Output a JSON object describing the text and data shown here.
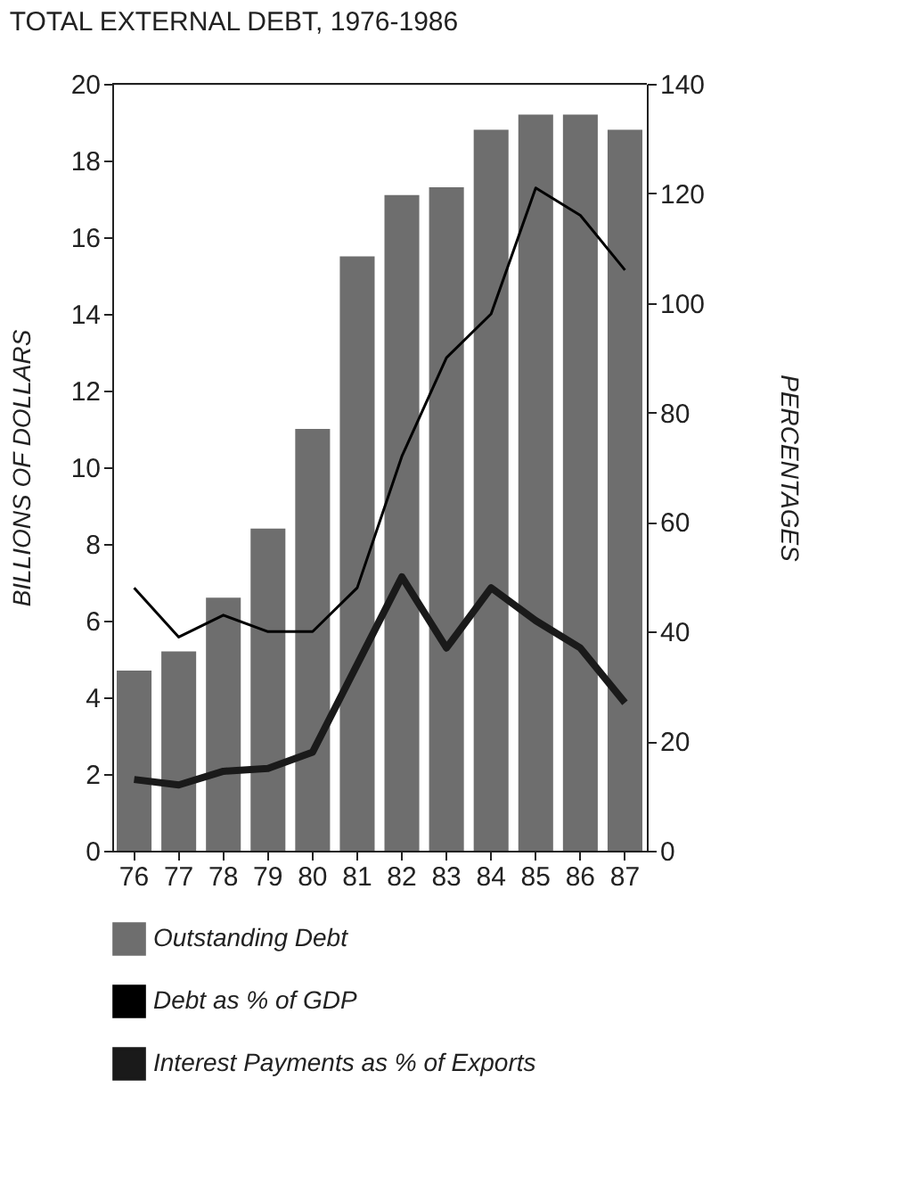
{
  "chart_data": {
    "type": "bar",
    "title": "TOTAL EXTERNAL DEBT, 1976-1986",
    "categories": [
      "76",
      "77",
      "78",
      "79",
      "80",
      "81",
      "82",
      "83",
      "84",
      "85",
      "86",
      "87"
    ],
    "series": [
      {
        "name": "Outstanding Debt",
        "color": "#6e6e6e",
        "values": [
          4.7,
          5.2,
          6.6,
          8.4,
          11.0,
          15.5,
          17.1,
          17.3,
          18.8,
          19.2,
          19.2,
          18.8
        ]
      },
      {
        "name": "Debt as % of GDP",
        "type": "line",
        "axis": "y2",
        "color": "#000000",
        "values": [
          48,
          39,
          43,
          40,
          40,
          48,
          72,
          90,
          98,
          121,
          116,
          106
        ]
      },
      {
        "name": "Interest Payments as % of Exports",
        "type": "line",
        "axis": "y2",
        "color": "#1a1a1a",
        "values": [
          13,
          12,
          14.5,
          15,
          18,
          34,
          50,
          37,
          48,
          42,
          37,
          27
        ]
      }
    ],
    "ylabel": "BILLIONS OF DOLLARS",
    "y2label": "PERCENTAGES",
    "ylim": [
      0,
      20
    ],
    "yticks": [
      0,
      2,
      4,
      6,
      8,
      10,
      12,
      14,
      16,
      18,
      20
    ],
    "y2lim": [
      0,
      140
    ],
    "y2ticks": [
      0,
      20,
      40,
      60,
      80,
      100,
      120,
      140
    ],
    "grid": false,
    "legend": "bottom"
  }
}
